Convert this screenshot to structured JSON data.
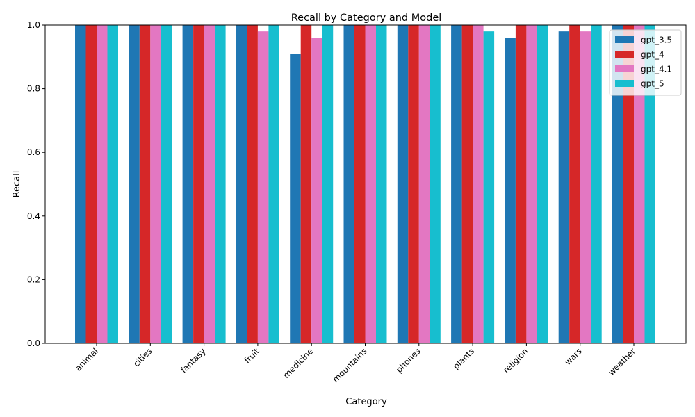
{
  "chart_data": {
    "type": "bar",
    "title": "Recall by Category and Model",
    "xlabel": "Category",
    "ylabel": "Recall",
    "ylim": [
      0,
      1.0
    ],
    "yticks": [
      "0.0",
      "0.2",
      "0.4",
      "0.6",
      "0.8",
      "1.0"
    ],
    "grid": false,
    "legend_position": "top-right",
    "categories": [
      "animal",
      "cities",
      "fantasy",
      "fruit",
      "medicine",
      "mountains",
      "phones",
      "plants",
      "religion",
      "wars",
      "weather"
    ],
    "series": [
      {
        "name": "gpt_3.5",
        "color": "#1f77b4",
        "values": [
          1.0,
          1.0,
          1.0,
          1.0,
          0.91,
          1.0,
          1.0,
          1.0,
          0.96,
          0.98,
          1.0
        ]
      },
      {
        "name": "gpt_4",
        "color": "#d62728",
        "values": [
          1.0,
          1.0,
          1.0,
          1.0,
          1.0,
          1.0,
          1.0,
          1.0,
          1.0,
          1.0,
          1.0
        ]
      },
      {
        "name": "gpt_4.1",
        "color": "#e377c2",
        "values": [
          1.0,
          1.0,
          1.0,
          0.98,
          0.96,
          1.0,
          1.0,
          1.0,
          1.0,
          0.98,
          1.0
        ]
      },
      {
        "name": "gpt_5",
        "color": "#17becf",
        "values": [
          1.0,
          1.0,
          1.0,
          1.0,
          1.0,
          1.0,
          1.0,
          0.98,
          1.0,
          1.0,
          1.0
        ]
      }
    ]
  }
}
